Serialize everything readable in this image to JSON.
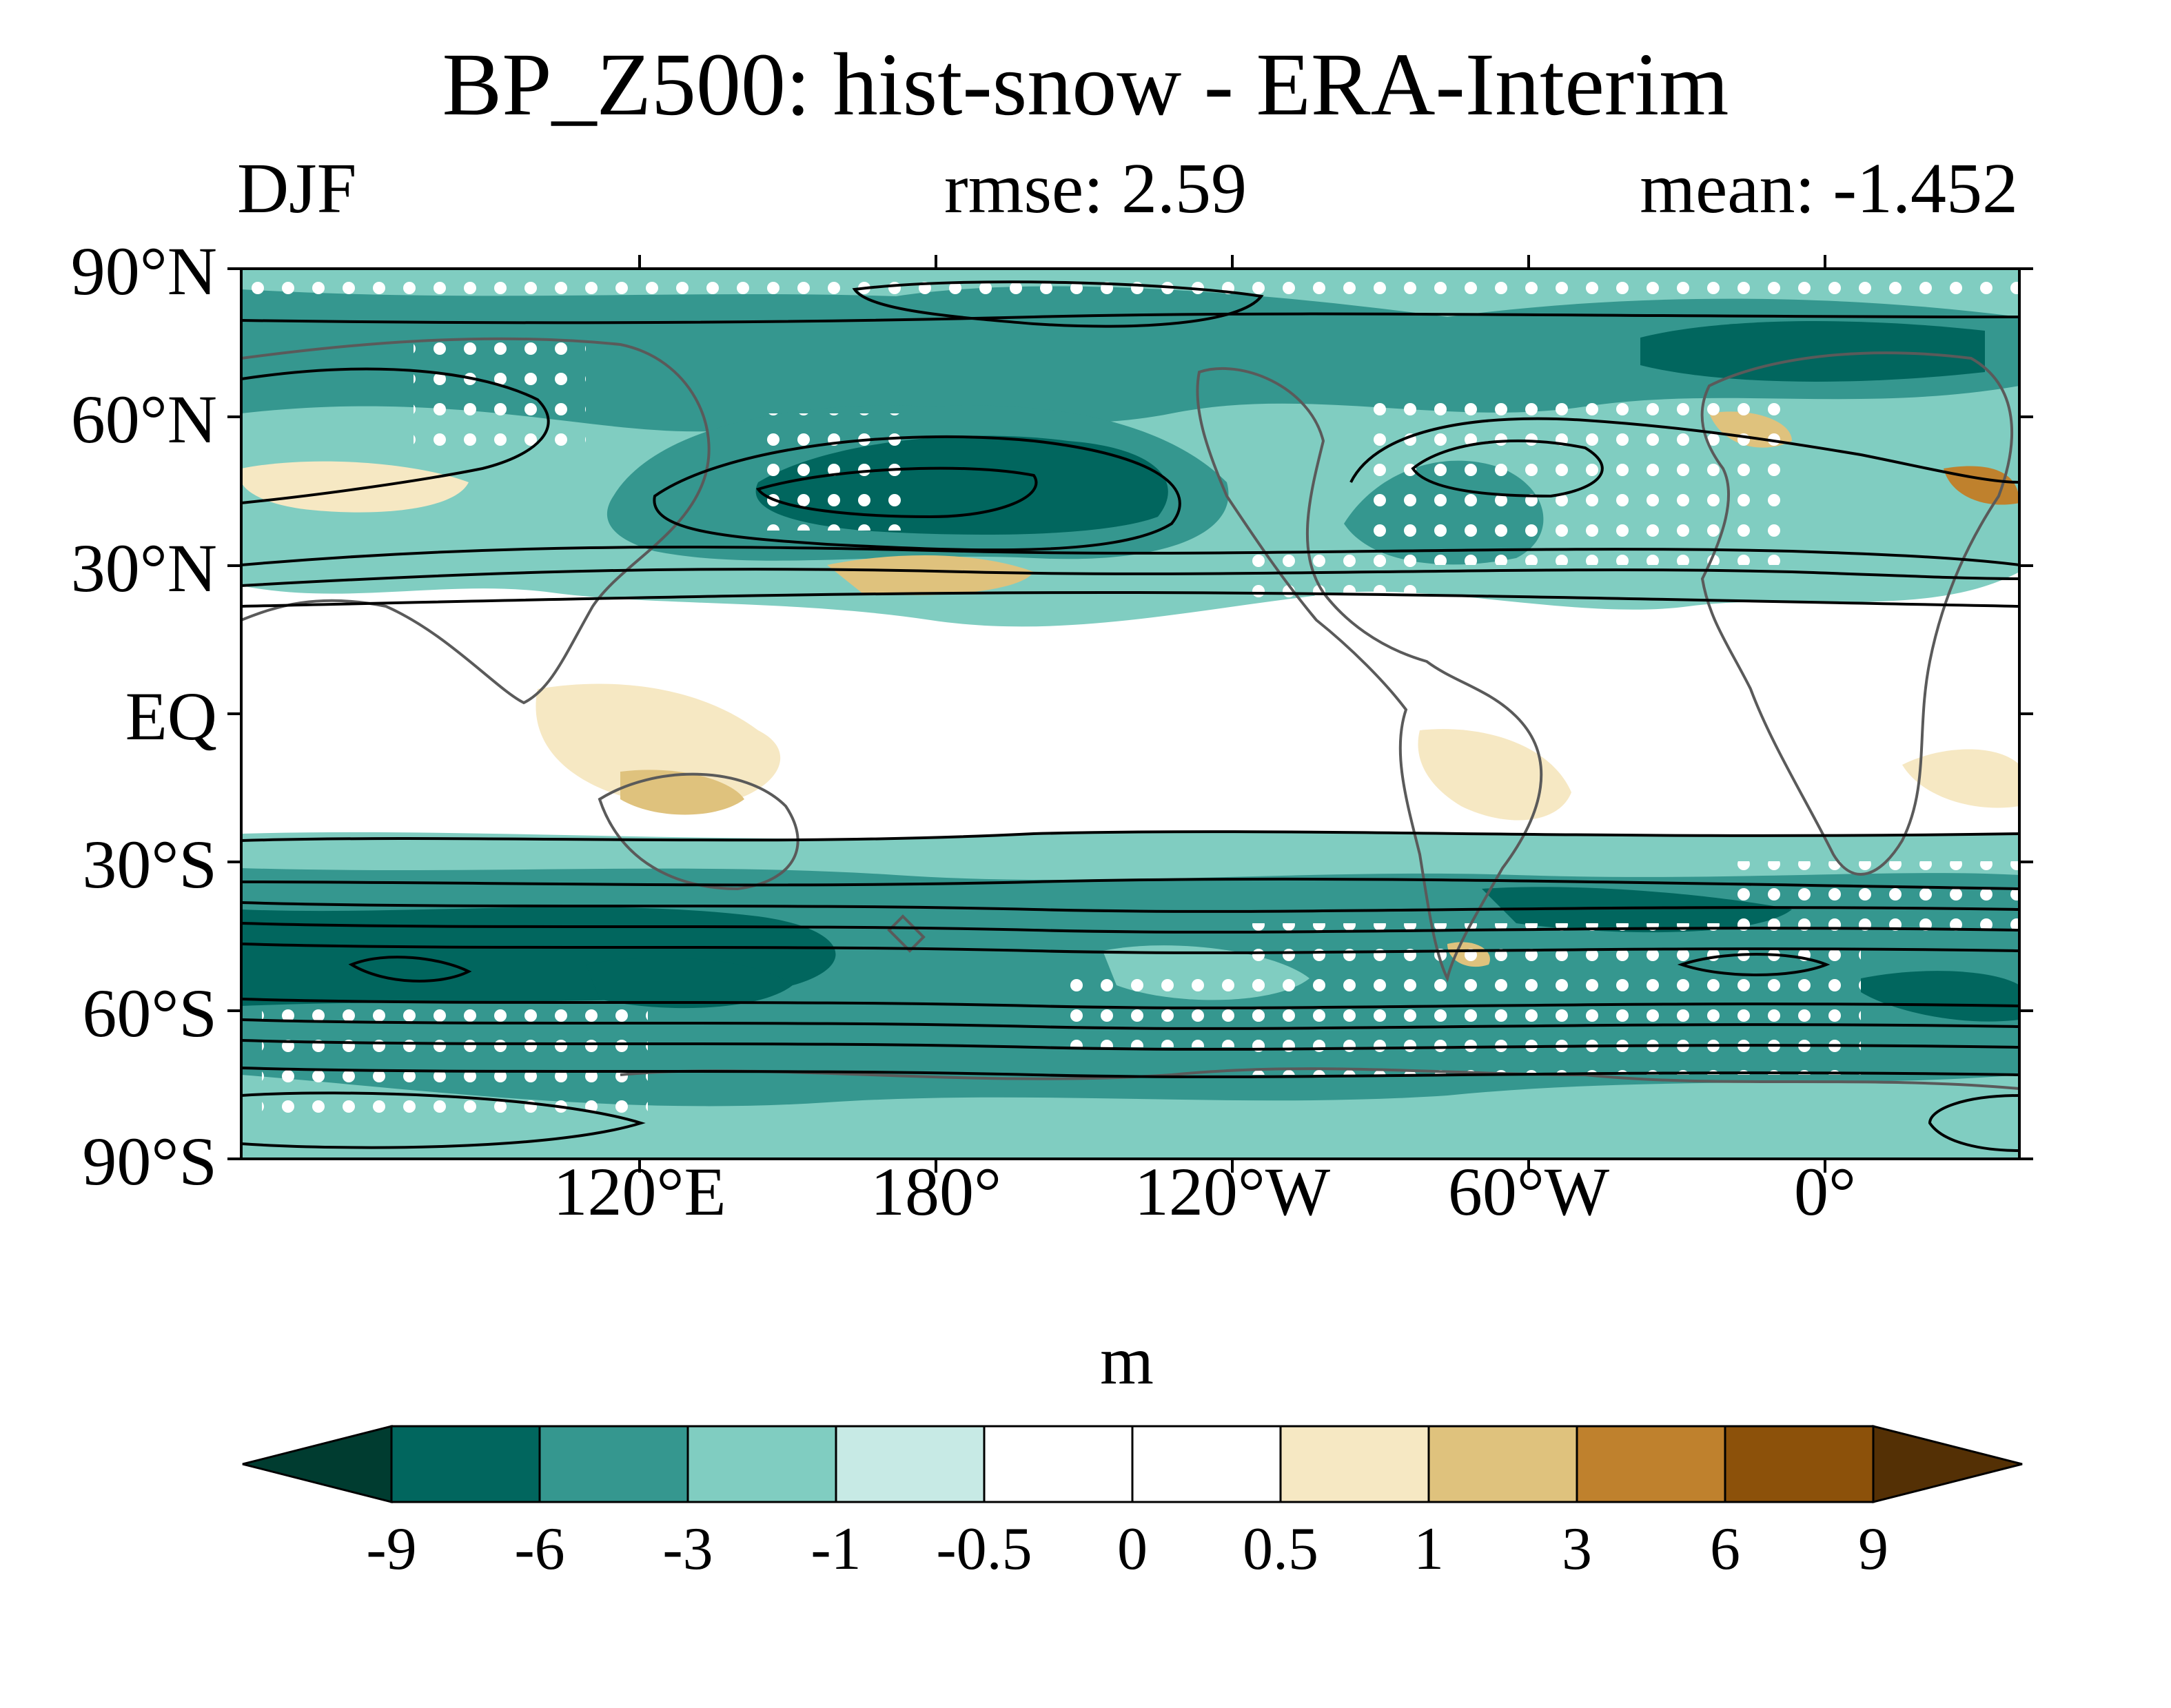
{
  "header": {
    "title": "BP_Z500: hist-snow - ERA-Interim",
    "season": "DJF",
    "rmse": "rmse: 2.59",
    "mean": "mean: -1.452"
  },
  "map": {
    "projection": "cylindrical equidistant, centered 150°W",
    "lon_range": [
      10,
      370
    ],
    "lat_range": [
      -90,
      90
    ],
    "y_ticks": [
      "90°N",
      "60°N",
      "30°N",
      "EQ",
      "30°S",
      "60°S",
      "90°S"
    ],
    "x_ticks": [
      "120°E",
      "180°",
      "120°W",
      "60°W",
      "0°"
    ],
    "stippling": "white dots = significant regions",
    "contours": "black lines = climatology Z500 contours"
  },
  "colorbar": {
    "units": "m",
    "levels": [
      "-9",
      "-6",
      "-3",
      "-1",
      "-0.5",
      "0",
      "0.5",
      "1",
      "3",
      "6",
      "9"
    ],
    "colors": [
      "#003c30",
      "#01665e",
      "#35978f",
      "#80cdc1",
      "#c7eae5",
      "#ffffff",
      "#ffffff",
      "#f6e8c3",
      "#dfc27d",
      "#bf812d",
      "#8c510a",
      "#543005"
    ]
  },
  "chart_data": {
    "type": "heatmap",
    "title": "BP_Z500: hist-snow - ERA-Interim",
    "subtitle_left": "DJF",
    "subtitle_center": "rmse: 2.59",
    "subtitle_right": "mean: -1.452",
    "xlabel": "",
    "ylabel": "",
    "units": "m",
    "xlim": [
      10,
      370
    ],
    "ylim": [
      -90,
      90
    ],
    "grid": false
  }
}
